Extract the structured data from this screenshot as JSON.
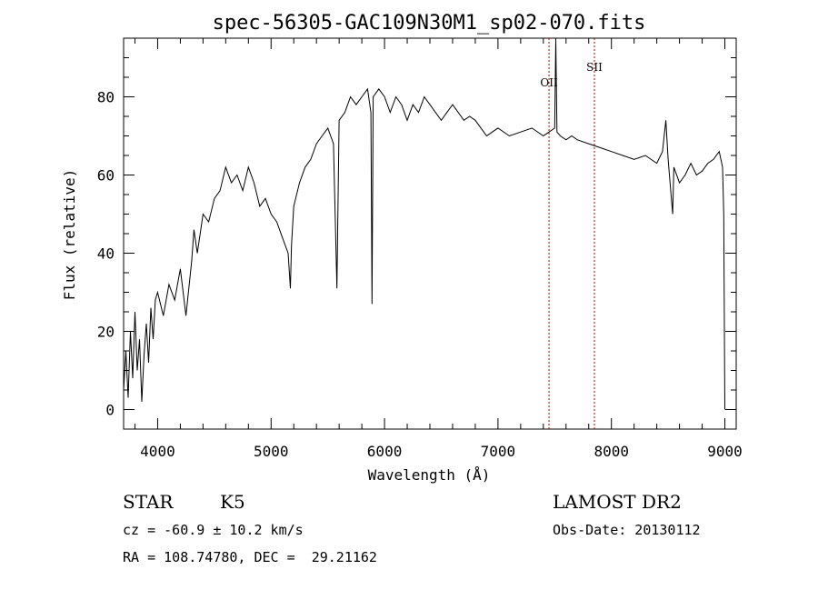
{
  "chart_data": {
    "type": "line",
    "title": "spec-56305-GAC109N30M1_sp02-070.fits",
    "xlabel": "Wavelength (Å)",
    "ylabel": "Flux (relative)",
    "xlim": [
      3700,
      9100
    ],
    "ylim": [
      -5,
      95
    ],
    "xticks": [
      4000,
      5000,
      6000,
      7000,
      8000,
      9000
    ],
    "yticks": [
      0,
      20,
      40,
      60,
      80
    ],
    "grid": false,
    "line_color": "#000000",
    "marker_color": "#c00000",
    "emission_lines": [
      {
        "name": "OII",
        "x": 7450
      },
      {
        "name": "SII",
        "x": 7850
      }
    ],
    "series": [
      {
        "x": [
          3700,
          3720,
          3740,
          3760,
          3780,
          3800,
          3820,
          3840,
          3860,
          3880,
          3900,
          3920,
          3940,
          3960,
          3980,
          4000,
          4050,
          4100,
          4150,
          4200,
          4250,
          4300,
          4320,
          4350,
          4400,
          4450,
          4500,
          4550,
          4600,
          4650,
          4700,
          4750,
          4800,
          4850,
          4900,
          4950,
          5000,
          5050,
          5100,
          5150,
          5170,
          5180,
          5200,
          5250,
          5300,
          5350,
          5400,
          5450,
          5500,
          5550,
          5580,
          5600,
          5650,
          5700,
          5750,
          5800,
          5850,
          5880,
          5890,
          5900,
          5950,
          6000,
          6050,
          6100,
          6150,
          6200,
          6250,
          6300,
          6350,
          6400,
          6450,
          6500,
          6550,
          6600,
          6650,
          6700,
          6750,
          6800,
          6850,
          6900,
          6950,
          7000,
          7100,
          7200,
          7300,
          7400,
          7450,
          7500,
          7510,
          7520,
          7550,
          7600,
          7650,
          7700,
          7800,
          7900,
          8000,
          8100,
          8200,
          8300,
          8400,
          8450,
          8480,
          8500,
          8540,
          8550,
          8600,
          8650,
          8700,
          8750,
          8800,
          8850,
          8900,
          8950,
          8980,
          8990,
          9000
        ],
        "y": [
          5,
          15,
          3,
          20,
          8,
          25,
          10,
          18,
          2,
          14,
          22,
          12,
          26,
          18,
          28,
          30,
          24,
          32,
          28,
          36,
          24,
          38,
          46,
          40,
          50,
          48,
          54,
          56,
          62,
          58,
          60,
          56,
          62,
          58,
          52,
          54,
          50,
          48,
          44,
          40,
          31,
          42,
          52,
          58,
          62,
          64,
          68,
          70,
          72,
          68,
          31,
          74,
          76,
          80,
          78,
          80,
          82,
          76,
          27,
          80,
          82,
          80,
          76,
          80,
          78,
          74,
          78,
          76,
          80,
          78,
          76,
          74,
          76,
          78,
          76,
          74,
          75,
          74,
          72,
          70,
          71,
          72,
          70,
          71,
          72,
          70,
          71,
          72,
          95,
          71,
          70,
          69,
          70,
          69,
          68,
          67,
          66,
          65,
          64,
          65,
          63,
          66,
          74,
          64,
          50,
          62,
          58,
          60,
          63,
          60,
          61,
          63,
          64,
          66,
          62,
          50,
          0
        ]
      }
    ]
  },
  "info": {
    "object_class": "STAR",
    "subclass": "K5",
    "survey": "LAMOST DR2",
    "redshift": "cz = -60.9 ± 10.2 km/s",
    "obs_date": "Obs-Date: 20130112",
    "coords": "RA = 108.74780, DEC =  29.21162"
  }
}
